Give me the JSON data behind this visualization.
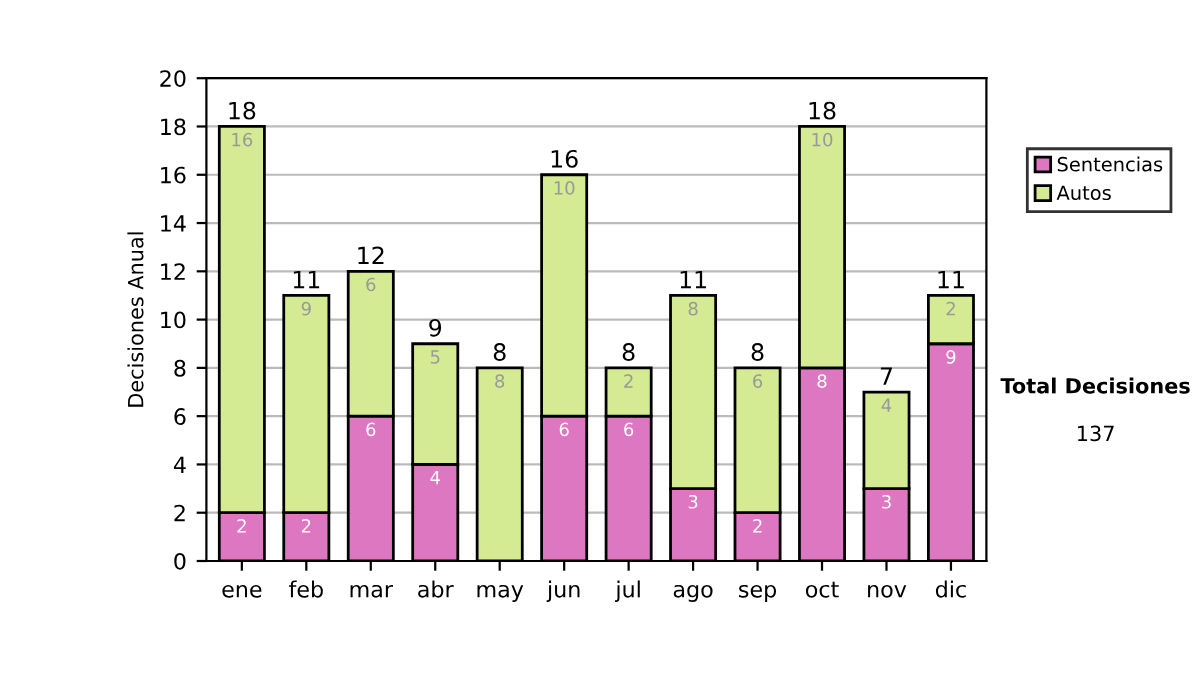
{
  "chart_data": {
    "type": "bar",
    "stacked": true,
    "ylabel": "Decisiones Anual",
    "categories": [
      "ene",
      "feb",
      "mar",
      "abr",
      "may",
      "jun",
      "jul",
      "ago",
      "sep",
      "oct",
      "nov",
      "dic"
    ],
    "series": [
      {
        "name": "Sentencias",
        "color": "#dd77c2",
        "values": [
          2,
          2,
          6,
          4,
          0,
          6,
          6,
          3,
          2,
          8,
          3,
          9
        ],
        "value_labels": [
          "2",
          "2",
          "6",
          "4",
          null,
          "6",
          "6",
          "3",
          "2",
          "8",
          "3",
          "9"
        ]
      },
      {
        "name": "Autos",
        "color": "#d4eb94",
        "values": [
          16,
          9,
          6,
          5,
          8,
          10,
          2,
          8,
          6,
          10,
          4,
          2
        ],
        "value_labels": [
          "16",
          "9",
          "6",
          "5",
          "8",
          "10",
          "2",
          "8",
          "6",
          "10",
          "4",
          "2"
        ]
      }
    ],
    "totals": [
      "18",
      "11",
      "12",
      "9",
      "8",
      "16",
      "8",
      "11",
      "8",
      "18",
      "7",
      "11"
    ],
    "ylim": [
      0,
      20
    ],
    "yticks": [
      0,
      2,
      4,
      6,
      8,
      10,
      12,
      14,
      16,
      18,
      20
    ],
    "grid": "y",
    "legend": "right",
    "annotations": [
      "Total Decisiones",
      "137"
    ]
  }
}
